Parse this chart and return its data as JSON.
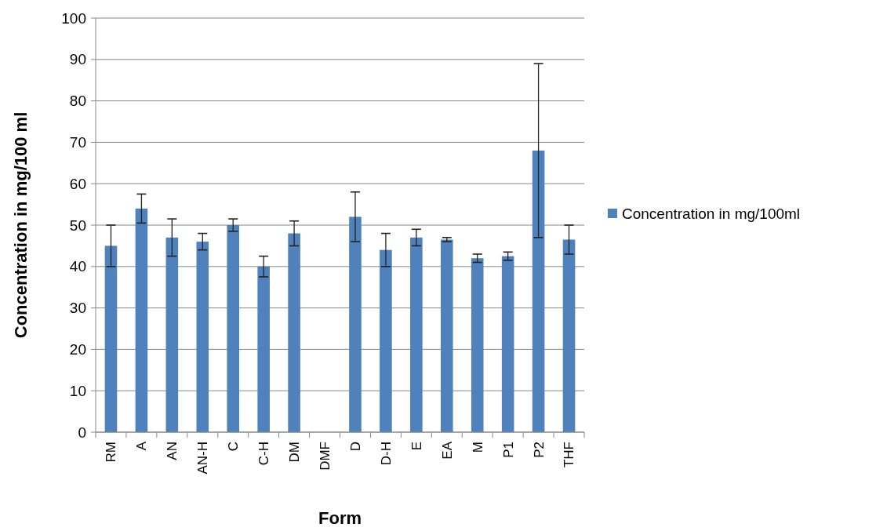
{
  "chart_data": {
    "type": "bar",
    "xlabel": "Form",
    "ylabel": "Concentration in mg/100 ml",
    "categories": [
      "RM",
      "A",
      "AN",
      "AN-H",
      "C",
      "C-H",
      "DM",
      "DMF",
      "D",
      "D-H",
      "E",
      "EA",
      "M",
      "P1",
      "P2",
      "THF"
    ],
    "series": [
      {
        "name": "Concentration in mg/100ml",
        "color": "#4f81bd",
        "values": [
          45,
          54,
          47,
          46,
          50,
          40,
          48,
          null,
          52,
          44,
          47,
          46.5,
          42,
          42.5,
          68,
          46.5
        ],
        "errors": [
          5,
          3.5,
          4.5,
          2,
          1.5,
          2.5,
          3,
          null,
          6,
          4,
          2,
          0.5,
          1,
          1,
          21,
          3.5
        ]
      }
    ],
    "ylim": [
      0,
      100
    ],
    "yticks": [
      0,
      10,
      20,
      30,
      40,
      50,
      60,
      70,
      80,
      90,
      100
    ],
    "grid": "y",
    "legend": "right"
  }
}
